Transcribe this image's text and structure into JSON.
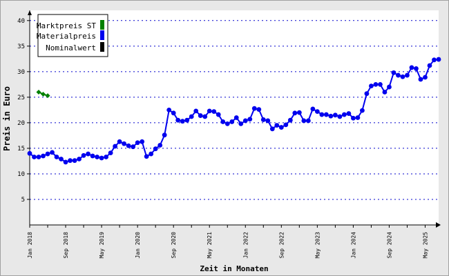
{
  "chart_data": {
    "type": "line",
    "title": "",
    "xlabel": "Zeit in Monaten",
    "ylabel": "Preis in Euro",
    "ylim": [
      0,
      42
    ],
    "yticks": [
      5,
      10,
      15,
      20,
      25,
      30,
      35,
      40
    ],
    "grid": true,
    "legend_position": "top-left",
    "xlim": [
      "2018-01",
      "2025-08"
    ],
    "xtick_labels": [
      {
        "month": "2018-01",
        "label": "Jan 2018"
      },
      {
        "month": "2018-09",
        "label": "Sep 2018"
      },
      {
        "month": "2019-05",
        "label": "May 2019"
      },
      {
        "month": "2020-01",
        "label": "Jan 2020"
      },
      {
        "month": "2020-09",
        "label": "Sep 2020"
      },
      {
        "month": "2021-05",
        "label": "May 2021"
      },
      {
        "month": "2022-01",
        "label": "Jan 2022"
      },
      {
        "month": "2022-09",
        "label": "Sep 2022"
      },
      {
        "month": "2023-05",
        "label": "May 2023"
      },
      {
        "month": "2024-01",
        "label": "Jan 2024"
      },
      {
        "month": "2024-09",
        "label": "Sep 2024"
      },
      {
        "month": "2025-05",
        "label": "May 2025"
      }
    ],
    "series": [
      {
        "name": "Marktpreis ST",
        "color": "#008000",
        "marker": "diamond",
        "start": "2018-03",
        "values": [
          26.0,
          25.6,
          25.3
        ]
      },
      {
        "name": "Materialpreis",
        "color": "#0000ee",
        "marker": "circle",
        "start": "2018-01",
        "values": [
          14.0,
          13.3,
          13.3,
          13.5,
          13.9,
          14.2,
          13.3,
          12.9,
          12.3,
          12.6,
          12.6,
          12.9,
          13.6,
          13.9,
          13.5,
          13.3,
          13.1,
          13.3,
          14.1,
          15.4,
          16.3,
          15.9,
          15.5,
          15.3,
          16.1,
          16.3,
          13.4,
          13.9,
          14.9,
          15.6,
          17.6,
          22.5,
          21.9,
          20.5,
          20.3,
          20.5,
          21.2,
          22.3,
          21.4,
          21.2,
          22.3,
          22.2,
          21.6,
          20.2,
          19.8,
          20.2,
          21.0,
          19.8,
          20.4,
          20.7,
          22.8,
          22.6,
          20.6,
          20.4,
          18.8,
          19.5,
          19.1,
          19.6,
          20.5,
          21.9,
          22.0,
          20.4,
          20.4,
          22.7,
          22.2,
          21.6,
          21.6,
          21.3,
          21.5,
          21.2,
          21.6,
          21.8,
          20.9,
          21.0,
          22.4,
          25.7,
          27.2,
          27.5,
          27.5,
          26.0,
          27.0,
          29.8,
          29.3,
          29.0,
          29.3,
          30.8,
          30.6,
          28.5,
          28.9,
          31.2,
          32.3,
          32.4
        ]
      },
      {
        "name": "Nominalwert",
        "color": "#000000",
        "marker": "none",
        "start": "2018-01",
        "values": []
      }
    ]
  }
}
